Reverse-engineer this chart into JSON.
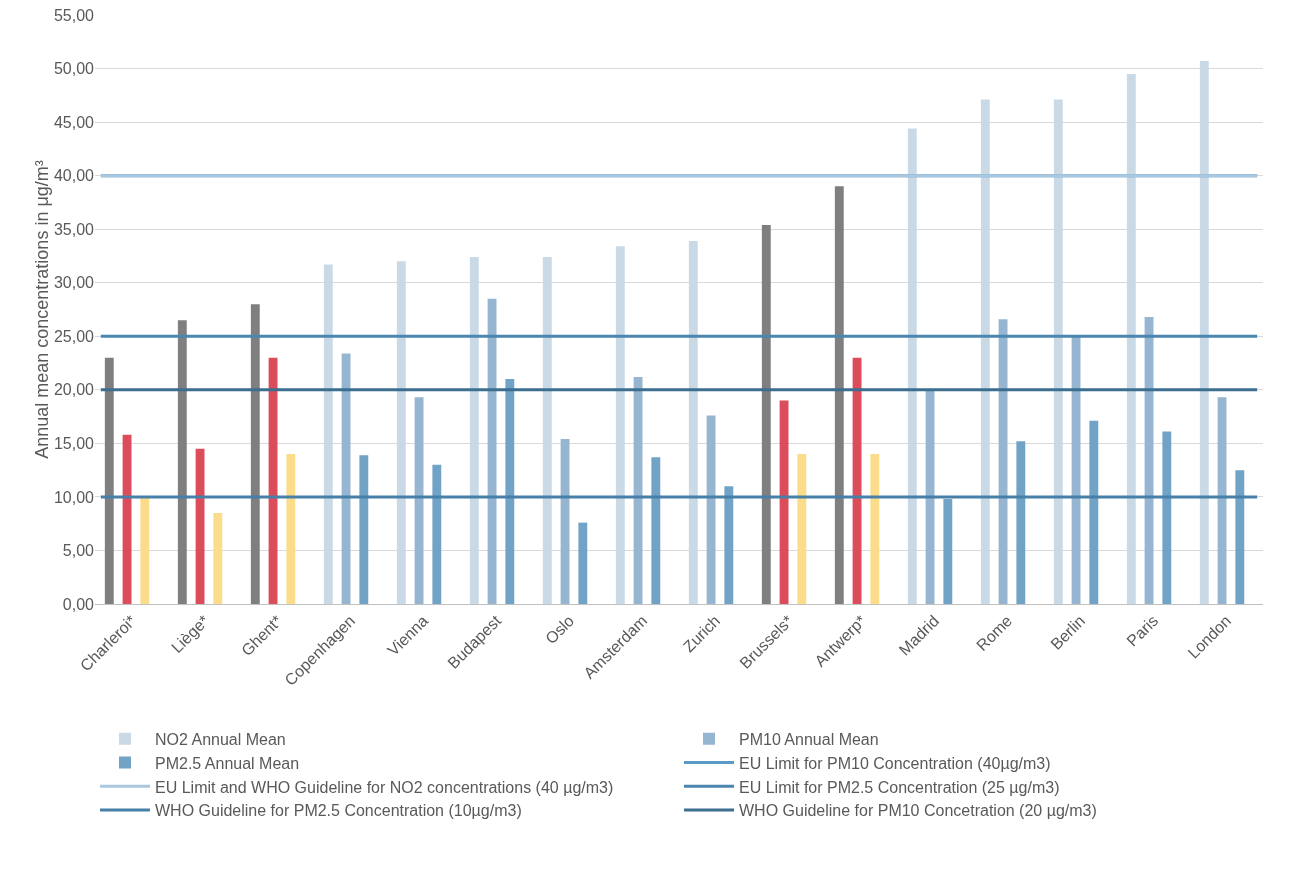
{
  "chart_data": {
    "type": "bar",
    "ylabel": "Annual mean concentrations in μg/m³",
    "categories": [
      "Charleroi*",
      "Liège*",
      "Ghent*",
      "Copenhagen",
      "Vienna",
      "Budapest",
      "Oslo",
      "Amsterdam",
      "Zurich",
      "Brussels*",
      "Antwerp*",
      "Madrid",
      "Rome",
      "Berlin",
      "Paris",
      "London"
    ],
    "series": [
      {
        "name": "NO2 Annual Mean",
        "color": "#c9d9e6",
        "colors": [
          "#7f7f7f",
          "#7f7f7f",
          "#7f7f7f",
          "#c9d9e6",
          "#c9d9e6",
          "#c9d9e6",
          "#c9d9e6",
          "#c9d9e6",
          "#c9d9e6",
          "#7f7f7f",
          "#7f7f7f",
          "#c9d9e6",
          "#c9d9e6",
          "#c9d9e6",
          "#c9d9e6",
          "#c9d9e6"
        ],
        "values": [
          23.0,
          26.5,
          28.0,
          31.7,
          32.0,
          32.4,
          32.4,
          33.4,
          33.9,
          35.4,
          39.0,
          44.4,
          47.1,
          47.1,
          49.5,
          50.7
        ]
      },
      {
        "name": "PM10 Annual Mean",
        "color": "#95b5d0",
        "colors": [
          "#dc4d5c",
          "#dc4d5c",
          "#dc4d5c",
          "#95b5d0",
          "#95b5d0",
          "#95b5d0",
          "#95b5d0",
          "#95b5d0",
          "#95b5d0",
          "#dc4d5c",
          "#dc4d5c",
          "#95b5d0",
          "#95b5d0",
          "#95b5d0",
          "#95b5d0",
          "#95b5d0"
        ],
        "values": [
          15.8,
          14.5,
          23.0,
          23.4,
          19.3,
          28.5,
          15.4,
          21.2,
          17.6,
          19.0,
          23.0,
          20.0,
          26.6,
          25.0,
          26.8,
          19.3
        ]
      },
      {
        "name": "PM2.5 Annual Mean",
        "color": "#71a3c7",
        "colors": [
          "#fadc8a",
          "#fadc8a",
          "#fadc8a",
          "#71a3c7",
          "#71a3c7",
          "#71a3c7",
          "#71a3c7",
          "#71a3c7",
          "#71a3c7",
          "#fadc8a",
          "#fadc8a",
          "#71a3c7",
          "#71a3c7",
          "#71a3c7",
          "#71a3c7",
          "#71a3c7"
        ],
        "values": [
          10.0,
          8.5,
          14.0,
          13.9,
          13.0,
          21.0,
          7.6,
          13.7,
          11.0,
          14.0,
          14.0,
          9.8,
          15.2,
          17.1,
          16.1,
          12.5
        ]
      }
    ],
    "ref_lines": [
      {
        "axis": "y",
        "value": 40,
        "label": "EU Limit for PM10 Concentration (40µg/m3)",
        "color": "#5a9ac7"
      },
      {
        "axis": "y",
        "value": 40,
        "label": "EU Limit and WHO Guideline for NO2 concentrations (40 µg/m3)",
        "color": "#a9c8e0"
      },
      {
        "axis": "y",
        "value": 25,
        "label": "EU Limit for PM2.5 Concentration (25 µg/m3)",
        "color": "#4a86b0"
      },
      {
        "axis": "y",
        "value": 10,
        "label": "WHO Guideline for PM2.5 Concentration (10µg/m3)",
        "color": "#467fa8"
      },
      {
        "axis": "y",
        "value": 20,
        "label": "WHO Guideline for PM10 Concetration (20 µg/m3)",
        "color": "#3b6e8f"
      }
    ],
    "ylim": [
      0,
      55
    ],
    "yticks": [
      {
        "value": 0,
        "label": "0,00"
      },
      {
        "value": 5,
        "label": "5,00"
      },
      {
        "value": 10,
        "label": "10,00"
      },
      {
        "value": 15,
        "label": "15,00"
      },
      {
        "value": 20,
        "label": "20,00"
      },
      {
        "value": 25,
        "label": "25,00"
      },
      {
        "value": 30,
        "label": "30,00"
      },
      {
        "value": 35,
        "label": "35,00"
      },
      {
        "value": 40,
        "label": "40,00"
      },
      {
        "value": 45,
        "label": "45,00"
      },
      {
        "value": 50,
        "label": "50,00"
      },
      {
        "value": 55,
        "label": "55,00"
      }
    ],
    "grid": "y",
    "legend": "bottom"
  }
}
